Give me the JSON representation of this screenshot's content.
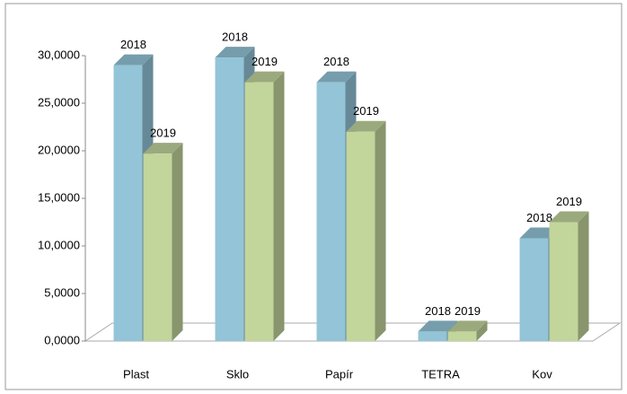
{
  "chart_data": {
    "type": "bar3d",
    "categories": [
      "Plast",
      "Sklo",
      "Papír",
      "TETRA",
      "Kov"
    ],
    "series": [
      {
        "name": "2018",
        "color": "#93c4d7",
        "values": [
          29000,
          29800,
          27200,
          1000,
          10800
        ]
      },
      {
        "name": "2019",
        "color": "#c2d59b",
        "values": [
          19700,
          27200,
          22000,
          1000,
          12500
        ]
      }
    ],
    "ylim": [
      0,
      30000
    ],
    "yticks": [
      {
        "value": 0,
        "label": "0,0000"
      },
      {
        "value": 5000,
        "label": "5,0000"
      },
      {
        "value": 10000,
        "label": "10,0000"
      },
      {
        "value": 15000,
        "label": "15,0000"
      },
      {
        "value": 20000,
        "label": "20,0000"
      },
      {
        "value": 25000,
        "label": "25,0000"
      },
      {
        "value": 30000,
        "label": "30,0000"
      }
    ],
    "grid": false
  }
}
